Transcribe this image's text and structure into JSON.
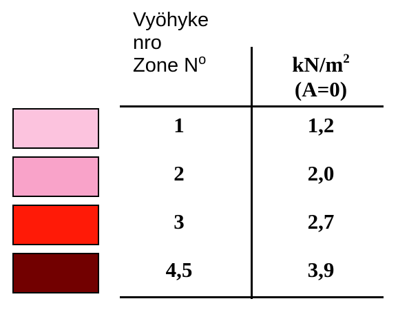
{
  "header": {
    "zone_line1": "Vyöhyke",
    "zone_line2": "nro",
    "zone_line3": "Zone N",
    "zone_line3_sup": "o",
    "unit_main": "kN/m",
    "unit_sup": "2",
    "unit_line2": "(A=0)"
  },
  "rows": [
    {
      "zone": "1",
      "load": "1,2",
      "color": "#FCC3DE"
    },
    {
      "zone": "2",
      "load": "2,0",
      "color": "#F9A3C9"
    },
    {
      "zone": "3",
      "load": "2,7",
      "color": "#FF1A07"
    },
    {
      "zone": "4,5",
      "load": "3,9",
      "color": "#720000"
    }
  ]
}
